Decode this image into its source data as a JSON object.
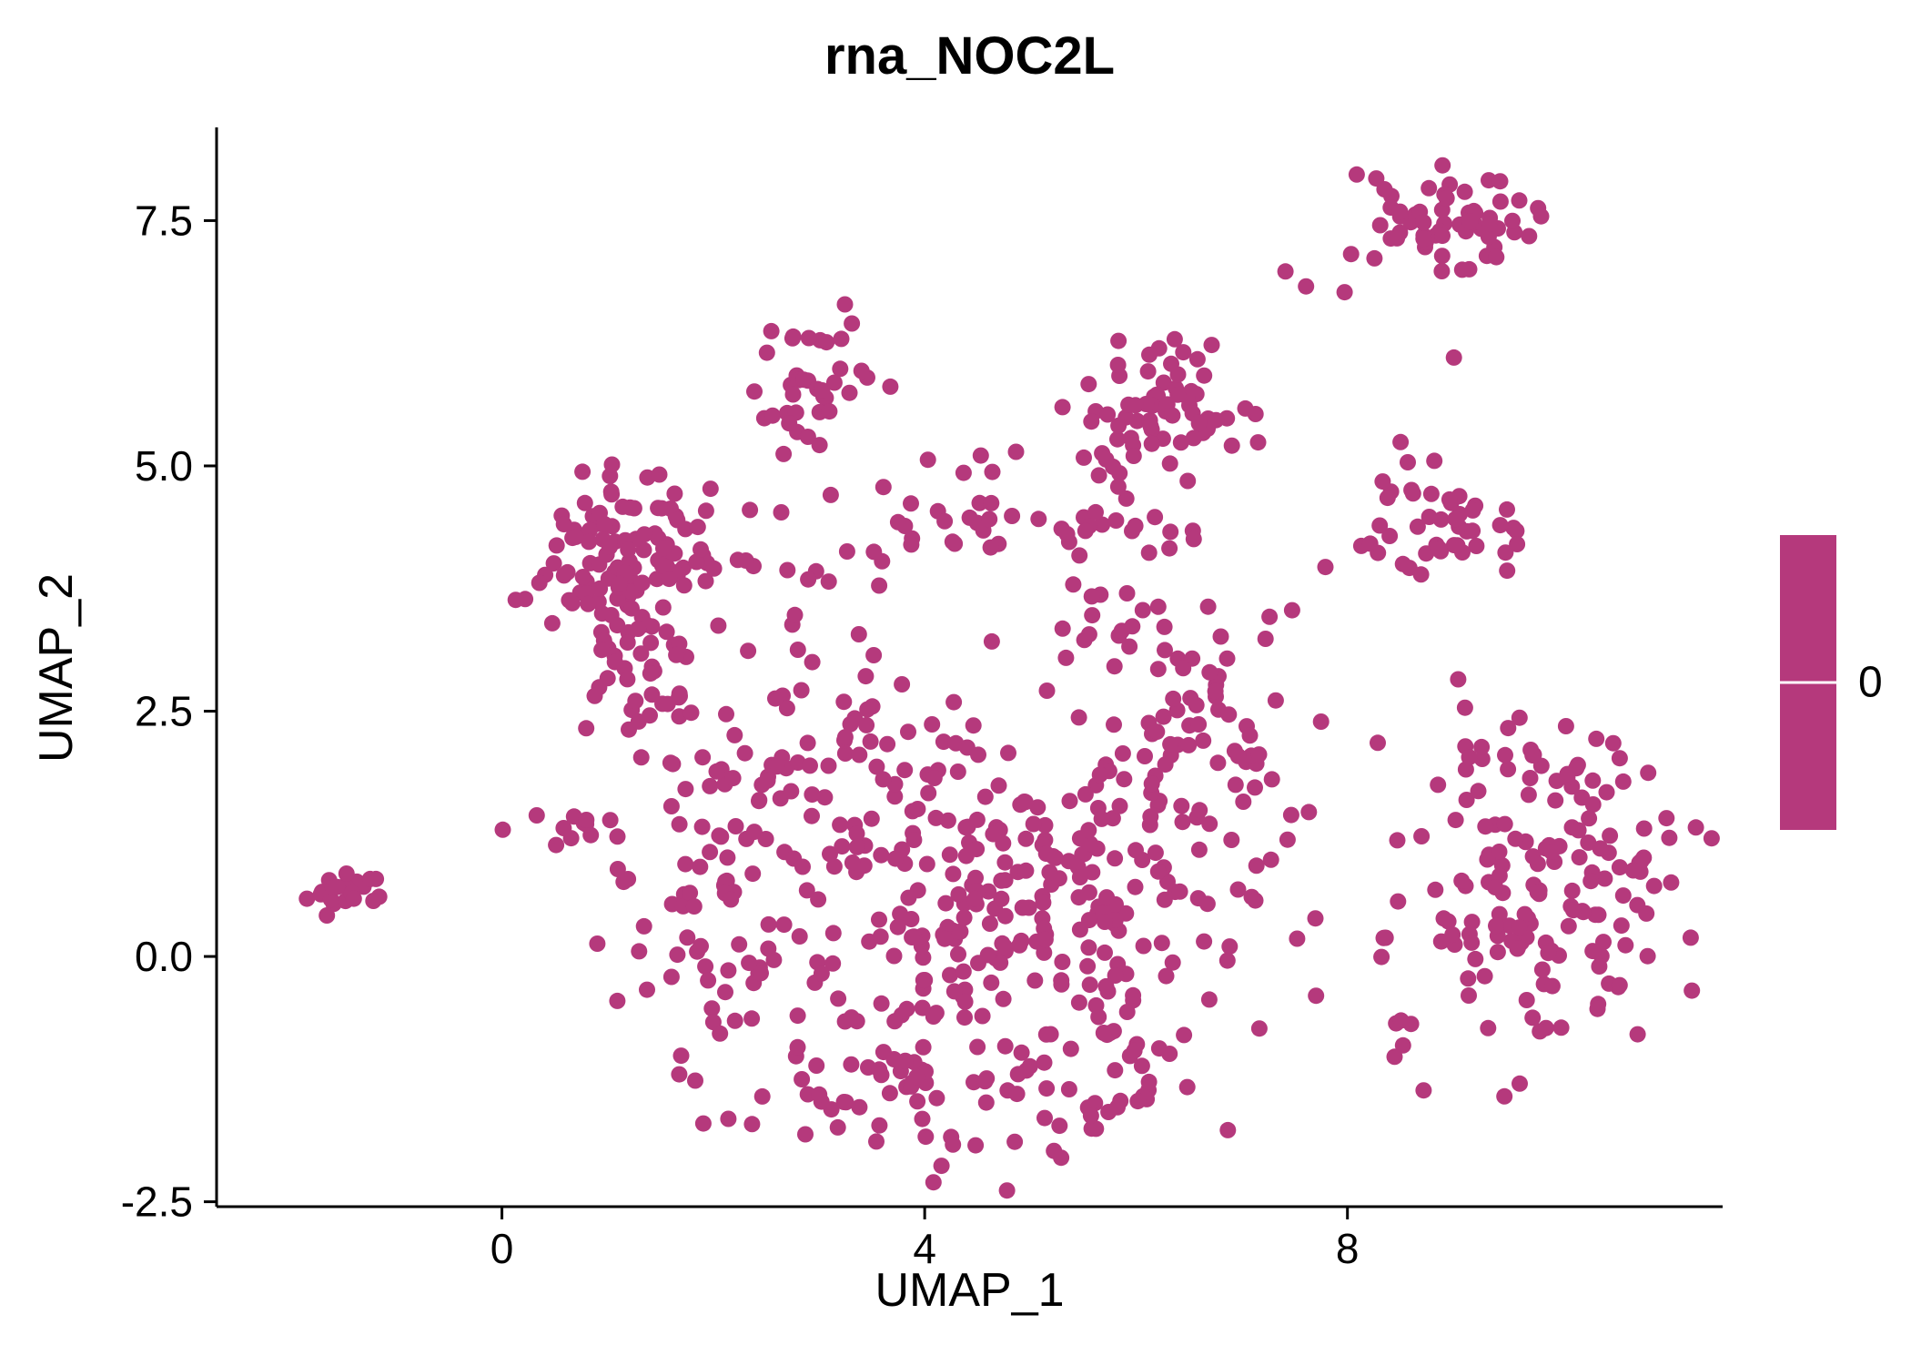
{
  "chart_data": {
    "type": "scatter",
    "title": "rna_NOC2L",
    "xlabel": "UMAP_1",
    "ylabel": "UMAP_2",
    "xlim": [
      -2.7,
      11.55
    ],
    "ylim": [
      -2.55,
      8.45
    ],
    "x_ticks": [
      0,
      4,
      8
    ],
    "x_tick_labels": [
      "0",
      "4",
      "8"
    ],
    "y_ticks": [
      -2.5,
      0.0,
      2.5,
      5.0,
      7.5
    ],
    "y_tick_labels": [
      "-2.5",
      "0.0",
      "2.5",
      "5.0",
      "7.5"
    ],
    "grid": false,
    "point_color": "#B5397C",
    "point_radius": 9,
    "axis_color": "#000000",
    "background_color": "#FFFFFF",
    "legend": {
      "type": "colorbar",
      "label": "0",
      "color": "#B5397C",
      "position": "right"
    },
    "n_points_approx": 1130,
    "seed": 42,
    "clusters": [
      {
        "name": "far-left-clump",
        "cx": -1.55,
        "cy": 0.68,
        "sx": 0.16,
        "sy": 0.08,
        "n": 20
      },
      {
        "name": "far-left-strays",
        "cx": -0.95,
        "cy": 0.8,
        "sx": 0.2,
        "sy": 0.05,
        "n": 2
      },
      {
        "name": "upper-left-blob",
        "cx": 1.15,
        "cy": 4.1,
        "sx": 0.45,
        "sy": 0.42,
        "n": 110
      },
      {
        "name": "upper-left-lower",
        "cx": 1.4,
        "cy": 3.0,
        "sx": 0.45,
        "sy": 0.4,
        "n": 42
      },
      {
        "name": "upper-left-band-east",
        "cx": 2.9,
        "cy": 4.25,
        "sx": 0.5,
        "sy": 0.3,
        "n": 16
      },
      {
        "name": "top-middle-cluster",
        "cx": 2.95,
        "cy": 5.78,
        "sx": 0.26,
        "sy": 0.3,
        "n": 38
      },
      {
        "name": "mid-row-five",
        "cx": 4.4,
        "cy": 5.02,
        "sx": 0.55,
        "sy": 0.08,
        "n": 5
      },
      {
        "name": "mid-band",
        "cx": 4.6,
        "cy": 4.4,
        "sx": 0.7,
        "sy": 0.14,
        "n": 24
      },
      {
        "name": "upper-center-cluster",
        "cx": 6.2,
        "cy": 5.5,
        "sx": 0.42,
        "sy": 0.35,
        "n": 72
      },
      {
        "name": "upper-center-south",
        "cx": 5.9,
        "cy": 4.4,
        "sx": 0.4,
        "sy": 0.22,
        "n": 12
      },
      {
        "name": "right-mid-cluster",
        "cx": 8.75,
        "cy": 4.35,
        "sx": 0.45,
        "sy": 0.33,
        "n": 46
      },
      {
        "name": "top-right-cluster",
        "cx": 8.9,
        "cy": 7.5,
        "sx": 0.48,
        "sy": 0.23,
        "n": 60
      },
      {
        "name": "top-right-strays",
        "cx": 7.7,
        "cy": 6.85,
        "sx": 0.2,
        "sy": 0.15,
        "n": 3
      },
      {
        "name": "top-right-isolated",
        "cx": 9.05,
        "cy": 6.1,
        "sx": 0.03,
        "sy": 0.03,
        "n": 1
      },
      {
        "name": "central-mass",
        "cx": 4.9,
        "cy": 0.6,
        "sx": 1.25,
        "sy": 0.95,
        "n": 280
      },
      {
        "name": "central-bottom-arc",
        "cx": 4.4,
        "cy": -1.35,
        "sx": 1.05,
        "sy": 0.4,
        "n": 80
      },
      {
        "name": "central-left-column",
        "cx": 2.1,
        "cy": 0.3,
        "sx": 0.5,
        "sy": 0.8,
        "n": 65
      },
      {
        "name": "central-left-upper",
        "cx": 2.6,
        "cy": 1.7,
        "sx": 0.5,
        "sy": 0.35,
        "n": 26
      },
      {
        "name": "center-upper-left",
        "cx": 3.3,
        "cy": 2.6,
        "sx": 0.55,
        "sy": 0.45,
        "n": 30
      },
      {
        "name": "center-right-bump",
        "cx": 6.7,
        "cy": 2.3,
        "sx": 0.45,
        "sy": 0.55,
        "n": 50
      },
      {
        "name": "center-north",
        "cx": 5.9,
        "cy": 3.3,
        "sx": 0.6,
        "sy": 0.3,
        "n": 22
      },
      {
        "name": "left-small-row",
        "cx": 0.75,
        "cy": 1.32,
        "sx": 0.25,
        "sy": 0.1,
        "n": 12
      },
      {
        "name": "right-cluster",
        "cx": 9.9,
        "cy": 0.55,
        "sx": 0.75,
        "sy": 0.8,
        "n": 150
      },
      {
        "name": "right-cluster-north",
        "cx": 9.7,
        "cy": 1.95,
        "sx": 0.35,
        "sy": 0.22,
        "n": 18
      },
      {
        "name": "right-cluster-west-strays",
        "cx": 8.35,
        "cy": 0.2,
        "sx": 0.12,
        "sy": 0.7,
        "n": 6
      }
    ]
  }
}
